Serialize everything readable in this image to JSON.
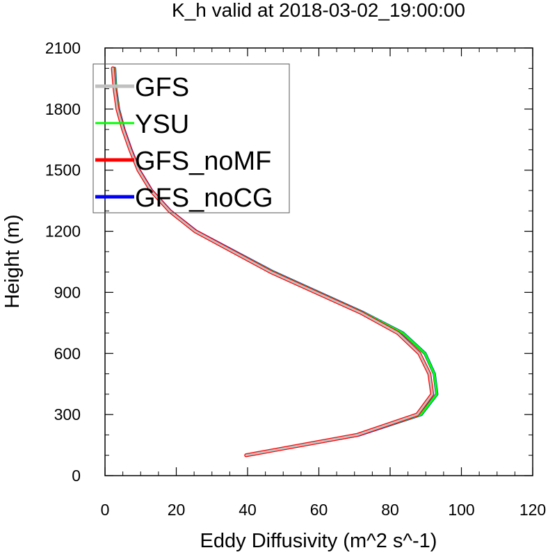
{
  "chart_data": {
    "type": "line",
    "title": "K_h valid at 2018-03-02_19:00:00",
    "xlabel": "Eddy Diffusivity (m^2 s^-1)",
    "ylabel": "Height (m)",
    "xlim": [
      0,
      120
    ],
    "ylim": [
      0,
      2100
    ],
    "xticks": [
      "0",
      "20",
      "40",
      "60",
      "80",
      "100",
      "120"
    ],
    "yticks": [
      "0",
      "300",
      "600",
      "900",
      "1200",
      "1500",
      "1800",
      "2100"
    ],
    "grid": false,
    "legend_position": "top-left",
    "series": [
      {
        "name": "GFS_noCG",
        "color": "#0000ff",
        "x": [
          39.6,
          71.3,
          88.7,
          93.1,
          92.4,
          89.8,
          83.6,
          72.5,
          47.2,
          25.6,
          18.3,
          13.1,
          9.6,
          7.3,
          5.3,
          3.8,
          3.0,
          2.7
        ],
        "y": [
          100,
          200,
          300,
          400,
          500,
          600,
          700,
          800,
          1000,
          1200,
          1300,
          1400,
          1500,
          1600,
          1700,
          1800,
          1900,
          2000
        ]
      },
      {
        "name": "YSU",
        "color": "#00ff00",
        "x": [
          39.6,
          71.3,
          88.7,
          93.1,
          92.4,
          89.8,
          83.6,
          72.5,
          47.2,
          25.6,
          18.3,
          13.1,
          9.6,
          7.3,
          5.3,
          3.8,
          3.0,
          2.7
        ],
        "y": [
          100,
          200,
          300,
          400,
          500,
          600,
          700,
          800,
          1000,
          1200,
          1300,
          1400,
          1500,
          1600,
          1700,
          1800,
          1900,
          2000
        ]
      },
      {
        "name": "GFS_noMF",
        "color": "#ff0000",
        "x": [
          39.6,
          70.8,
          87.6,
          91.8,
          91.0,
          88.2,
          82.2,
          71.8,
          46.5,
          25.3,
          18.1,
          12.9,
          9.4,
          7.1,
          5.1,
          3.5,
          2.7,
          2.2
        ],
        "y": [
          100,
          200,
          300,
          400,
          500,
          600,
          700,
          800,
          1000,
          1200,
          1300,
          1400,
          1500,
          1600,
          1700,
          1800,
          1900,
          2000
        ]
      },
      {
        "name": "GFS",
        "color": "#c0c0c0",
        "x": [
          39.6,
          70.8,
          87.6,
          91.8,
          91.0,
          88.2,
          82.2,
          71.8,
          46.5,
          25.3,
          18.1,
          12.9,
          9.4,
          7.1,
          5.1,
          3.5,
          2.7,
          2.2
        ],
        "y": [
          100,
          200,
          300,
          400,
          500,
          600,
          700,
          800,
          1000,
          1200,
          1300,
          1400,
          1500,
          1600,
          1700,
          1800,
          1900,
          2000
        ]
      }
    ],
    "legend_order": [
      "GFS",
      "YSU",
      "GFS_noMF",
      "GFS_noCG"
    ]
  }
}
